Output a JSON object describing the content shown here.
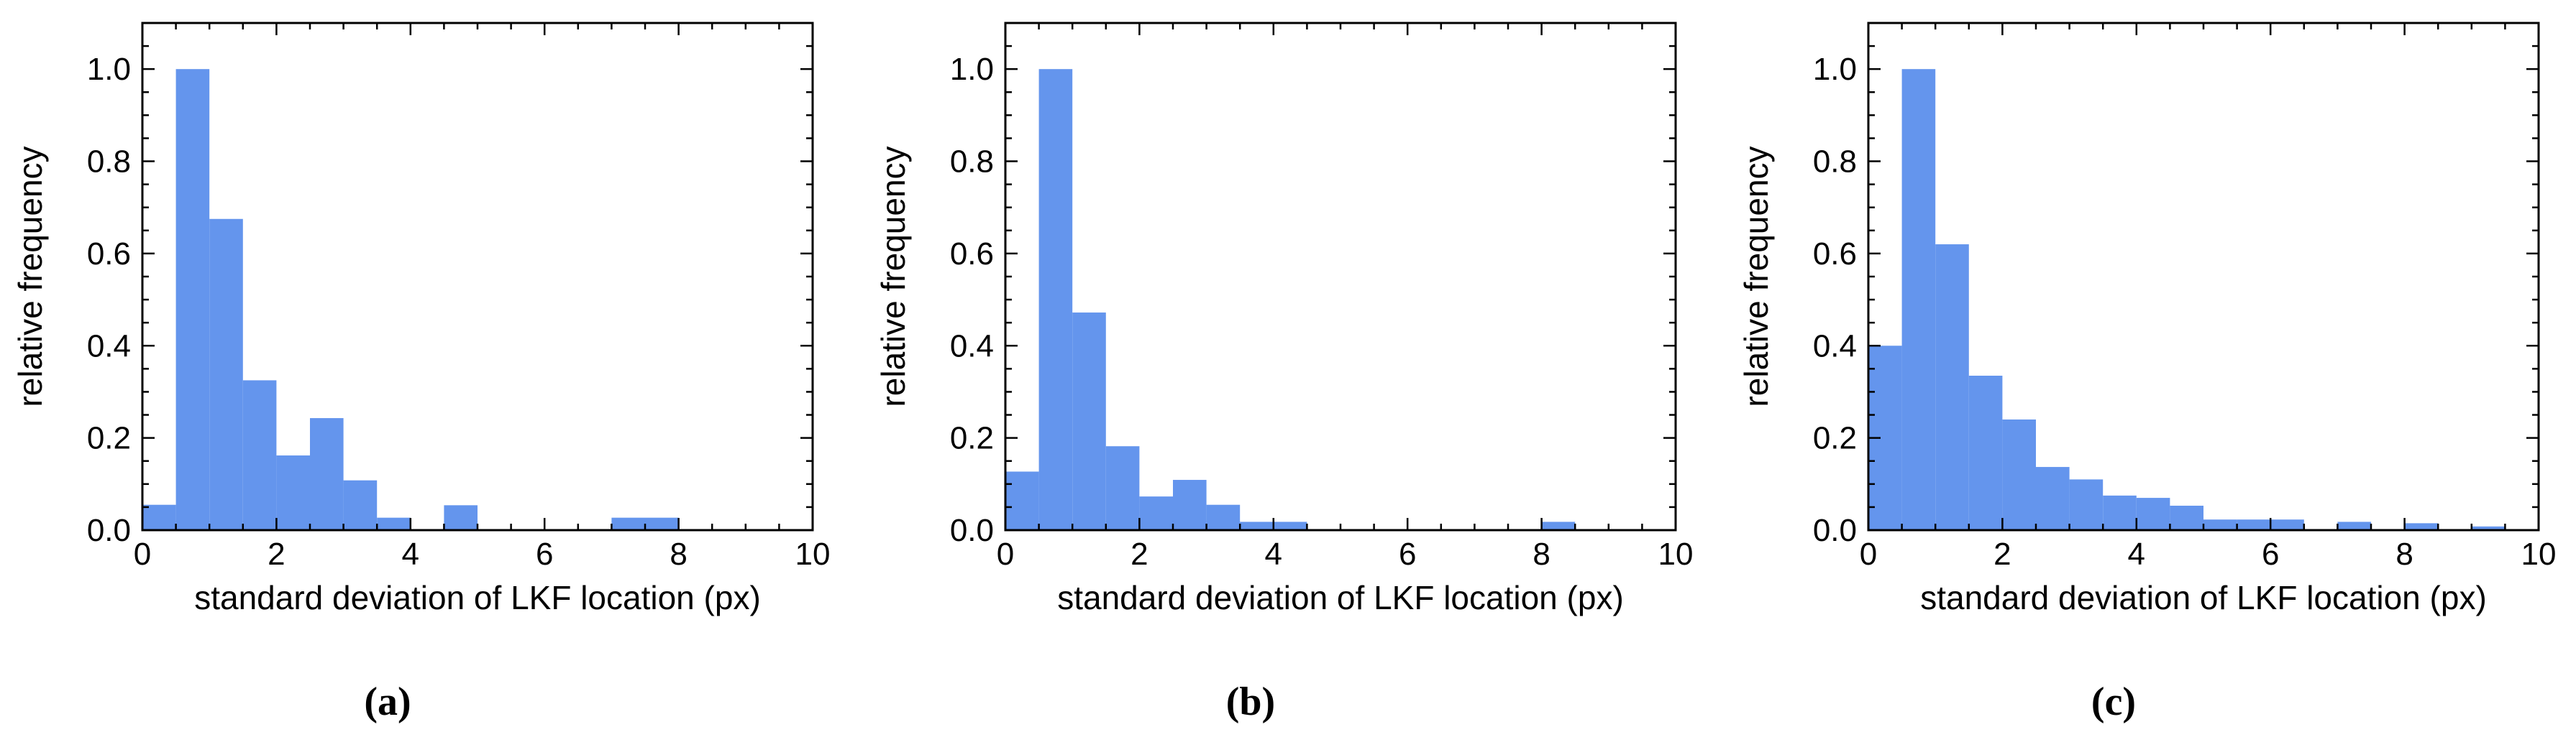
{
  "chart_data": [
    {
      "type": "bar",
      "caption": "(a)",
      "xlabel": "standard deviation of LKF location (px)",
      "ylabel": "relative frequency",
      "xlim": [
        0,
        10
      ],
      "ylim": [
        0,
        1.1
      ],
      "xticks": [
        "0",
        "2",
        "4",
        "6",
        "8",
        "10"
      ],
      "yticks": [
        "0.0",
        "0.2",
        "0.4",
        "0.6",
        "0.8",
        "1.0"
      ],
      "bin_width": 0.5,
      "bin_starts": [
        0,
        0.5,
        1,
        1.5,
        2,
        2.5,
        3,
        3.5,
        4,
        4.5,
        5,
        5.5,
        6,
        6.5,
        7,
        7.5,
        8,
        8.5,
        9,
        9.5
      ],
      "values": [
        0.055,
        1.0,
        0.675,
        0.325,
        0.162,
        0.243,
        0.108,
        0.027,
        0.0,
        0.054,
        0.0,
        0.0,
        0.0,
        0.0,
        0.027,
        0.027,
        0.0,
        0.0,
        0.0,
        0.0
      ],
      "color": "#6495ED"
    },
    {
      "type": "bar",
      "caption": "(b)",
      "xlabel": "standard deviation of LKF location (px)",
      "ylabel": "relative frequency",
      "xlim": [
        0,
        10
      ],
      "ylim": [
        0,
        1.1
      ],
      "xticks": [
        "0",
        "2",
        "4",
        "6",
        "8",
        "10"
      ],
      "yticks": [
        "0.0",
        "0.2",
        "0.4",
        "0.6",
        "0.8",
        "1.0"
      ],
      "bin_width": 0.5,
      "bin_starts": [
        0,
        0.5,
        1,
        1.5,
        2,
        2.5,
        3,
        3.5,
        4,
        4.5,
        5,
        5.5,
        6,
        6.5,
        7,
        7.5,
        8,
        8.5,
        9,
        9.5
      ],
      "values": [
        0.127,
        1.0,
        0.472,
        0.182,
        0.073,
        0.109,
        0.055,
        0.018,
        0.018,
        0.0,
        0.0,
        0.0,
        0.0,
        0.0,
        0.0,
        0.0,
        0.018,
        0.0,
        0.0,
        0.0
      ],
      "color": "#6495ED"
    },
    {
      "type": "bar",
      "caption": "(c)",
      "xlabel": "standard deviation of LKF location (px)",
      "ylabel": "relative frequency",
      "xlim": [
        0,
        10
      ],
      "ylim": [
        0,
        1.1
      ],
      "xticks": [
        "0",
        "2",
        "4",
        "6",
        "8",
        "10"
      ],
      "yticks": [
        "0.0",
        "0.2",
        "0.4",
        "0.6",
        "0.8",
        "1.0"
      ],
      "bin_width": 0.5,
      "bin_starts": [
        0,
        0.5,
        1,
        1.5,
        2,
        2.5,
        3,
        3.5,
        4,
        4.5,
        5,
        5.5,
        6,
        6.5,
        7,
        7.5,
        8,
        8.5,
        9,
        9.5
      ],
      "values": [
        0.4,
        1.0,
        0.62,
        0.335,
        0.24,
        0.137,
        0.11,
        0.075,
        0.07,
        0.053,
        0.023,
        0.023,
        0.023,
        0.0,
        0.018,
        0.0,
        0.015,
        0.0,
        0.008,
        0.0
      ],
      "color": "#6495ED"
    }
  ]
}
